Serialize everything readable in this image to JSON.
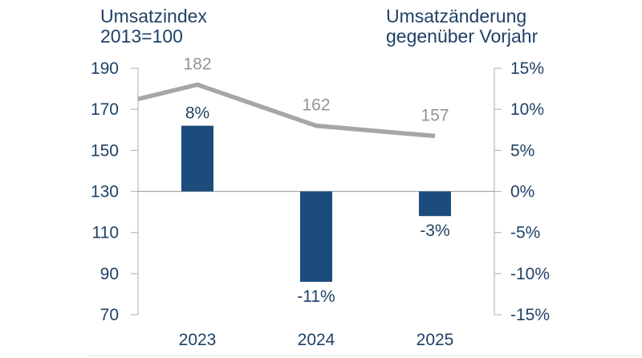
{
  "titles": {
    "left": {
      "lines": [
        "Umsatzindex",
        "2013=100"
      ]
    },
    "right": {
      "lines": [
        "Umsatzänderung",
        "gegenüber Vorjahr"
      ]
    }
  },
  "colors": {
    "text_navy": "#1f4166",
    "bar_blue": "#1c4c7c",
    "line_gray": "#a6a6a6",
    "value_label_gray": "#949494",
    "axis_gray": "#bfbfbf",
    "zero_line_gray": "#a6a6a6",
    "bottom_rule_gray": "#e5e5e5"
  },
  "chart_data": {
    "type": "combo",
    "categories": [
      "2023",
      "2024",
      "2025"
    ],
    "series": [
      {
        "name": "Umsatzindex 2013=100",
        "type": "line",
        "axis": "left",
        "values": [
          182,
          162,
          157
        ],
        "labels": [
          "182",
          "162",
          "157"
        ],
        "start_value_at_left_edge": 175
      },
      {
        "name": "Umsatzänderung gegenüber Vorjahr",
        "type": "bar",
        "axis": "right",
        "values": [
          8,
          -11,
          -3
        ],
        "labels": [
          "8%",
          "-11%",
          "-3%"
        ]
      }
    ],
    "left_axis": {
      "title": "Umsatzindex 2013=100",
      "ticks": [
        "190",
        "170",
        "150",
        "130",
        "110",
        "90",
        "70"
      ],
      "range": [
        70,
        190
      ]
    },
    "right_axis": {
      "title": "Umsatzänderung gegenüber Vorjahr",
      "ticks": [
        "15%",
        "10%",
        "5%",
        "0%",
        "-5%",
        "-10%",
        "-15%"
      ],
      "range": [
        -15,
        15
      ]
    },
    "grid": false,
    "zero_line": true,
    "legend": "none"
  }
}
